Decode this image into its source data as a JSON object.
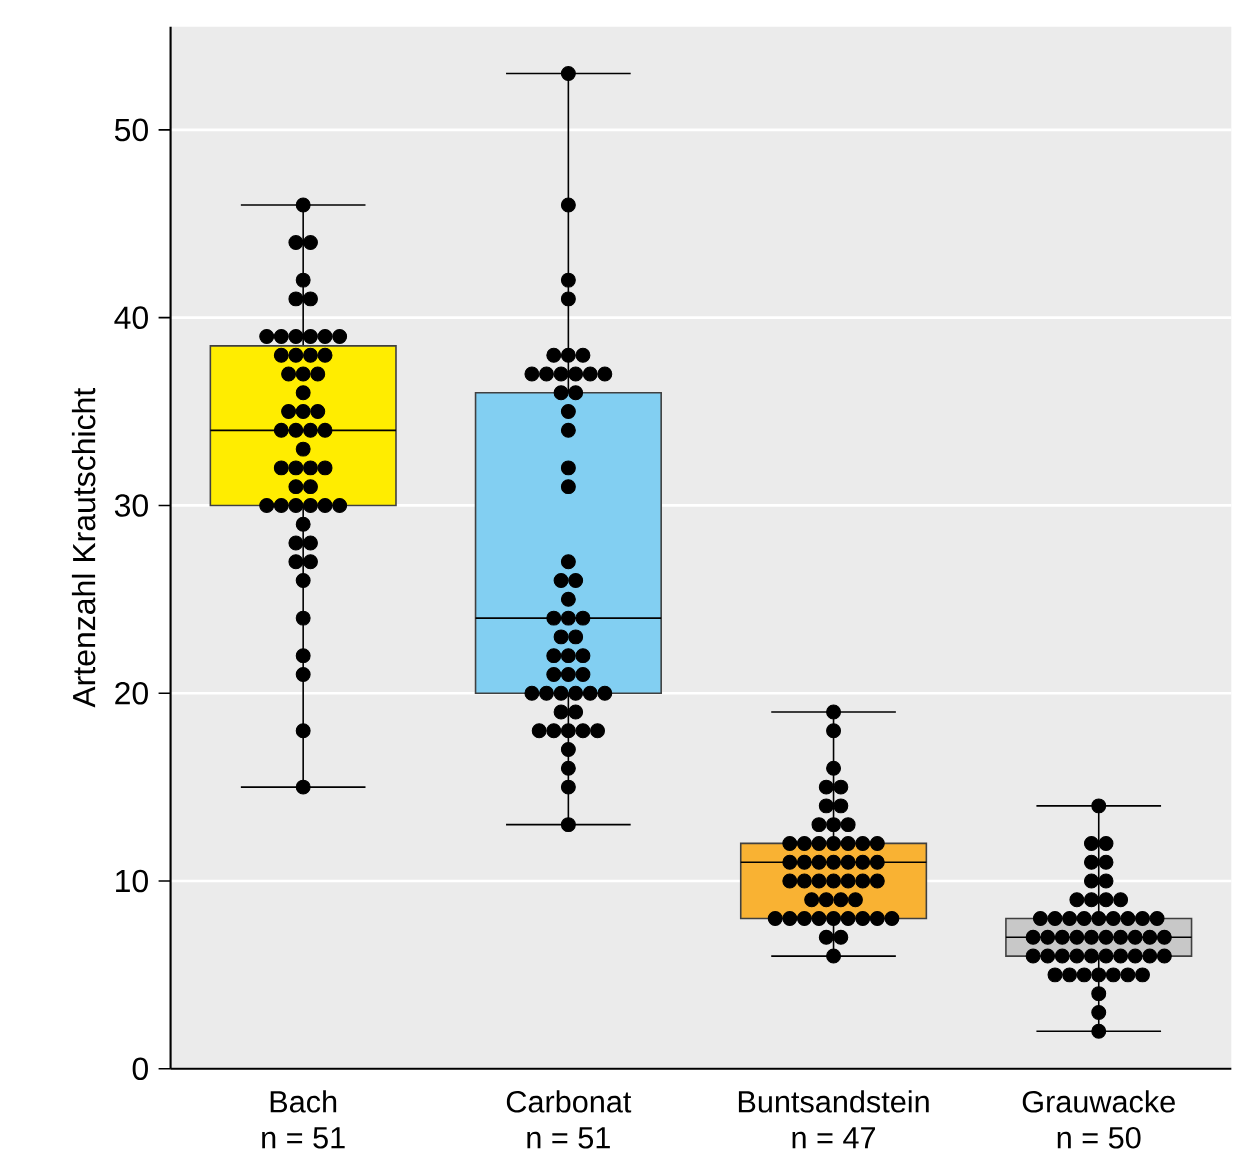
{
  "chart_data": {
    "type": "box",
    "ylabel": "Artenzahl Krautschicht",
    "categories": [
      "Bach",
      "Carbonat",
      "Buntsandstein",
      "Grauwacke"
    ],
    "annotations": [
      "n = 51",
      "n = 51",
      "n = 47",
      "n = 50"
    ],
    "colors": [
      "#ffed00",
      "#82cff2",
      "#f9b233",
      "#c8c8c8"
    ],
    "boxes": [
      {
        "low": 15,
        "q1": 30,
        "median": 34,
        "q3": 38.5,
        "high": 46
      },
      {
        "low": 13,
        "q1": 20,
        "median": 24,
        "q3": 36,
        "high": 53
      },
      {
        "low": 6,
        "q1": 8,
        "median": 11,
        "q3": 12,
        "high": 19
      },
      {
        "low": 2,
        "q1": 6,
        "median": 7,
        "q3": 8,
        "high": 14
      }
    ],
    "series": [
      {
        "type": "scatter",
        "color": "#000000",
        "marker": "circle",
        "x": [
          "Bach",
          "Bach",
          "Bach",
          "Bach",
          "Bach",
          "Bach",
          "Bach",
          "Bach",
          "Bach",
          "Bach",
          "Bach",
          "Bach",
          "Bach",
          "Bach",
          "Bach",
          "Bach",
          "Bach",
          "Bach",
          "Bach",
          "Bach",
          "Bach",
          "Bach",
          "Bach",
          "Bach",
          "Bach",
          "Bach",
          "Bach",
          "Bach",
          "Bach",
          "Bach",
          "Bach",
          "Bach",
          "Bach",
          "Bach",
          "Bach",
          "Bach",
          "Bach",
          "Bach",
          "Bach",
          "Bach",
          "Bach",
          "Bach",
          "Bach",
          "Bach",
          "Bach",
          "Bach",
          "Bach",
          "Bach",
          "Bach",
          "Bach",
          "Bach",
          "Carbonat",
          "Carbonat",
          "Carbonat",
          "Carbonat",
          "Carbonat",
          "Carbonat",
          "Carbonat",
          "Carbonat",
          "Carbonat",
          "Carbonat",
          "Carbonat",
          "Carbonat",
          "Carbonat",
          "Carbonat",
          "Carbonat",
          "Carbonat",
          "Carbonat",
          "Carbonat",
          "Carbonat",
          "Carbonat",
          "Carbonat",
          "Carbonat",
          "Carbonat",
          "Carbonat",
          "Carbonat",
          "Carbonat",
          "Carbonat",
          "Carbonat",
          "Carbonat",
          "Carbonat",
          "Carbonat",
          "Carbonat",
          "Carbonat",
          "Carbonat",
          "Carbonat",
          "Carbonat",
          "Carbonat",
          "Carbonat",
          "Carbonat",
          "Carbonat",
          "Carbonat",
          "Carbonat",
          "Carbonat",
          "Carbonat",
          "Carbonat",
          "Carbonat",
          "Carbonat",
          "Carbonat",
          "Carbonat",
          "Carbonat",
          "Carbonat",
          "Buntsandstein",
          "Buntsandstein",
          "Buntsandstein",
          "Buntsandstein",
          "Buntsandstein",
          "Buntsandstein",
          "Buntsandstein",
          "Buntsandstein",
          "Buntsandstein",
          "Buntsandstein",
          "Buntsandstein",
          "Buntsandstein",
          "Buntsandstein",
          "Buntsandstein",
          "Buntsandstein",
          "Buntsandstein",
          "Buntsandstein",
          "Buntsandstein",
          "Buntsandstein",
          "Buntsandstein",
          "Buntsandstein",
          "Buntsandstein",
          "Buntsandstein",
          "Buntsandstein",
          "Buntsandstein",
          "Buntsandstein",
          "Buntsandstein",
          "Buntsandstein",
          "Buntsandstein",
          "Buntsandstein",
          "Buntsandstein",
          "Buntsandstein",
          "Buntsandstein",
          "Buntsandstein",
          "Buntsandstein",
          "Buntsandstein",
          "Buntsandstein",
          "Buntsandstein",
          "Buntsandstein",
          "Buntsandstein",
          "Buntsandstein",
          "Buntsandstein",
          "Buntsandstein",
          "Buntsandstein",
          "Buntsandstein",
          "Buntsandstein",
          "Buntsandstein",
          "Grauwacke",
          "Grauwacke",
          "Grauwacke",
          "Grauwacke",
          "Grauwacke",
          "Grauwacke",
          "Grauwacke",
          "Grauwacke",
          "Grauwacke",
          "Grauwacke",
          "Grauwacke",
          "Grauwacke",
          "Grauwacke",
          "Grauwacke",
          "Grauwacke",
          "Grauwacke",
          "Grauwacke",
          "Grauwacke",
          "Grauwacke",
          "Grauwacke",
          "Grauwacke",
          "Grauwacke",
          "Grauwacke",
          "Grauwacke",
          "Grauwacke",
          "Grauwacke",
          "Grauwacke",
          "Grauwacke",
          "Grauwacke",
          "Grauwacke",
          "Grauwacke",
          "Grauwacke",
          "Grauwacke",
          "Grauwacke",
          "Grauwacke",
          "Grauwacke",
          "Grauwacke",
          "Grauwacke",
          "Grauwacke",
          "Grauwacke",
          "Grauwacke",
          "Grauwacke",
          "Grauwacke",
          "Grauwacke",
          "Grauwacke",
          "Grauwacke",
          "Grauwacke",
          "Grauwacke",
          "Grauwacke",
          "Grauwacke"
        ],
        "values": [
          46,
          44,
          44,
          42,
          41,
          41,
          39,
          39,
          39,
          39,
          39,
          39,
          38,
          38,
          38,
          38,
          37,
          37,
          37,
          36,
          35,
          35,
          35,
          34,
          34,
          34,
          34,
          33,
          32,
          32,
          32,
          32,
          31,
          31,
          30,
          30,
          30,
          30,
          30,
          30,
          29,
          28,
          28,
          27,
          27,
          26,
          24,
          22,
          21,
          18,
          15,
          53,
          46,
          42,
          41,
          38,
          38,
          38,
          37,
          37,
          37,
          37,
          37,
          37,
          36,
          36,
          35,
          34,
          32,
          31,
          27,
          26,
          26,
          25,
          24,
          24,
          24,
          23,
          23,
          22,
          22,
          22,
          21,
          21,
          21,
          20,
          20,
          20,
          20,
          20,
          20,
          19,
          19,
          18,
          18,
          18,
          18,
          18,
          17,
          16,
          15,
          13,
          19,
          18,
          16,
          15,
          15,
          14,
          14,
          13,
          13,
          13,
          12,
          12,
          12,
          12,
          12,
          12,
          12,
          11,
          11,
          11,
          11,
          11,
          11,
          11,
          10,
          10,
          10,
          10,
          10,
          10,
          10,
          9,
          9,
          9,
          9,
          8,
          8,
          8,
          8,
          8,
          8,
          8,
          8,
          8,
          7,
          7,
          6,
          14,
          12,
          12,
          11,
          11,
          10,
          10,
          9,
          9,
          9,
          9,
          8,
          8,
          8,
          8,
          8,
          8,
          8,
          8,
          8,
          7,
          7,
          7,
          7,
          7,
          7,
          7,
          7,
          7,
          7,
          6,
          6,
          6,
          6,
          6,
          6,
          6,
          6,
          6,
          6,
          5,
          5,
          5,
          5,
          5,
          5,
          5,
          4,
          3,
          2
        ]
      }
    ],
    "ylim": [
      0,
      55.5
    ],
    "yticks": [
      0,
      10,
      20,
      30,
      40,
      50
    ],
    "grid": "y"
  }
}
